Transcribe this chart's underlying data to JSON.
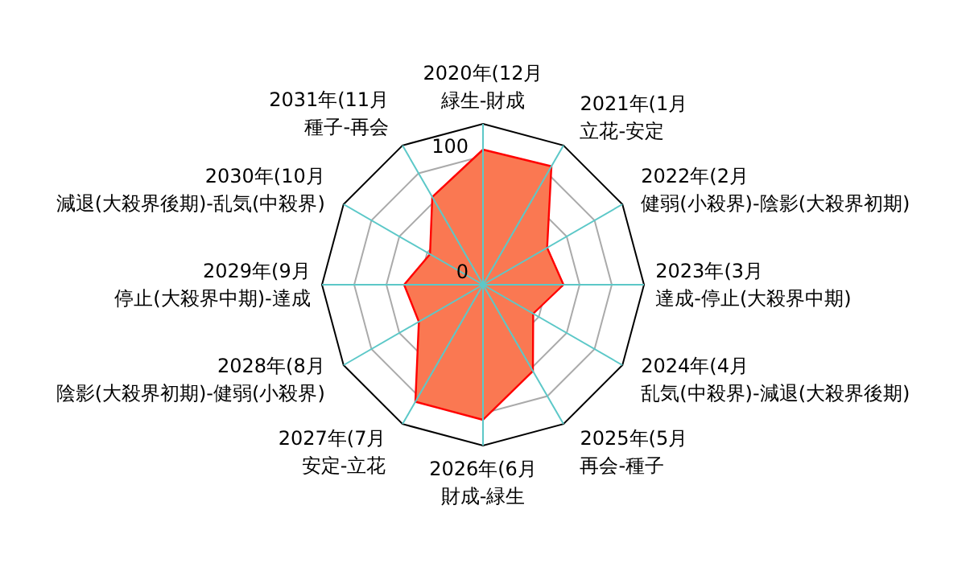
{
  "chart_data": {
    "type": "radar",
    "categories": [
      "2020年(12月緑生-財成",
      "2021年(1月立花-安定",
      "2022年(2月健弱(小殺界)-陰影(大殺界初期)",
      "2023年(3月達成-停止(大殺界中期)",
      "2024年(4月乱気(中殺界)-減退(大殺界後期)",
      "2025年(5月再会-種子",
      "2026年(6月財成-緑生",
      "2027年(7月安定-立花",
      "2028年(8月陰影(大殺界初期)-健弱(小殺界)",
      "2029年(9月停止(大殺界中期)-達成",
      "2030年(10月減退(大殺界後期)-乱気(中殺界)",
      "2031年(11月種子-再会"
    ],
    "series": [
      {
        "color": "#fa7852",
        "values": [
          84,
          85,
          46,
          50,
          36,
          62,
          84,
          84,
          46,
          49,
          38,
          63
        ]
      }
    ],
    "ylim": [
      0,
      100
    ],
    "yticks": [
      0,
      100
    ],
    "grid": true
  }
}
